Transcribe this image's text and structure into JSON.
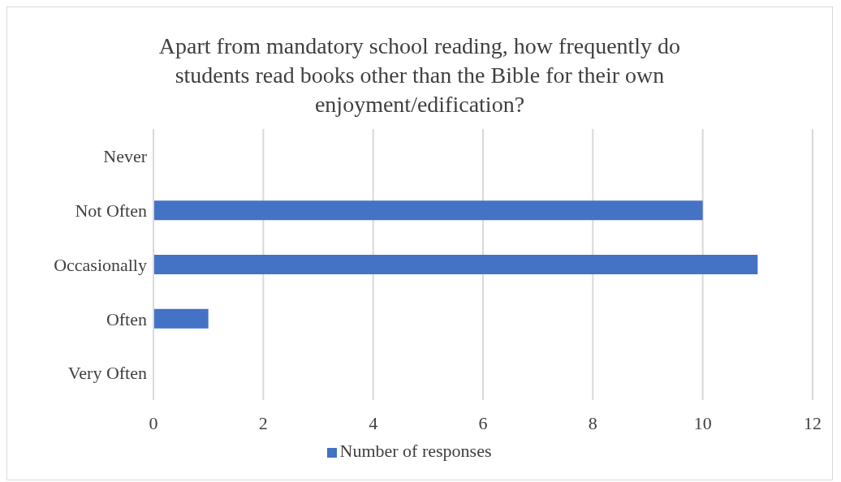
{
  "chart_data": {
    "type": "bar",
    "orientation": "horizontal",
    "title": "Apart from mandatory school reading, how frequently do students read books other than the Bible for their own enjoyment/edification?",
    "categories": [
      "Never",
      "Not Often",
      "Occasionally",
      "Often",
      "Very Often"
    ],
    "series": [
      {
        "name": "Number of responses",
        "color": "#4472c4",
        "values": [
          0,
          10,
          11,
          1,
          0
        ]
      }
    ],
    "xlim": [
      0,
      12
    ],
    "xticks": [
      0,
      2,
      4,
      6,
      8,
      10,
      12
    ],
    "grid": "x",
    "legend": "bottom"
  }
}
